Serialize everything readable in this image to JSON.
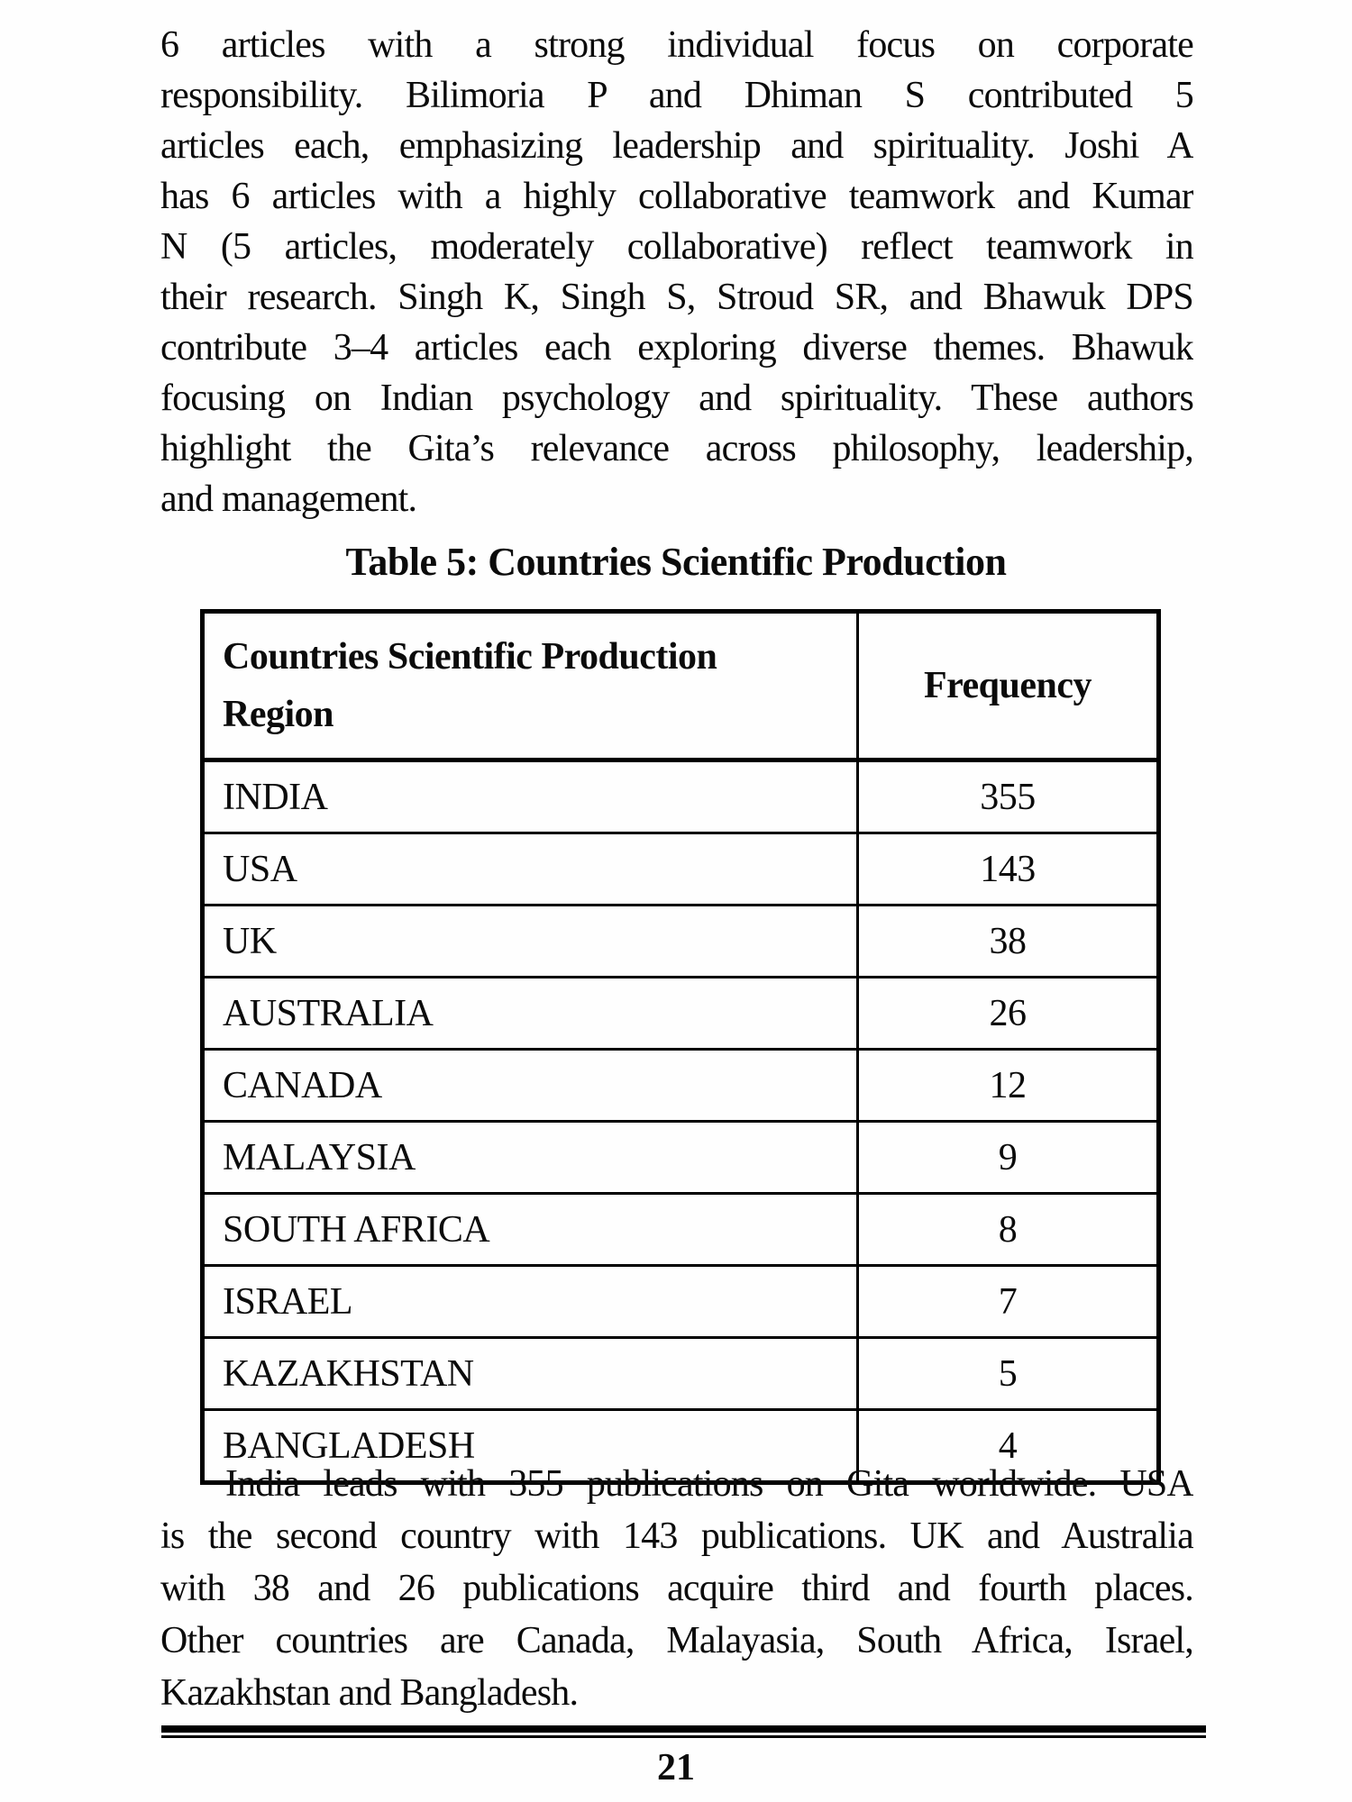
{
  "paragraph1": {
    "lines": [
      "6 articles with a strong individual focus on corporate",
      "responsibility. Bilimoria P and Dhiman S contributed 5",
      "articles each, emphasizing leadership and spirituality. Joshi A",
      "has 6 articles with a highly collaborative teamwork and Kumar",
      "N (5 articles, moderately collaborative) reflect teamwork in",
      "their research. Singh K, Singh S, Stroud SR, and Bhawuk DPS",
      "contribute 3–4 articles each exploring diverse themes. Bhawuk",
      "focusing on Indian psychology and spirituality. These authors",
      "highlight the Gita’s relevance across philosophy, leadership,",
      "and management."
    ]
  },
  "table": {
    "title": "Table 5: Countries Scientific Production",
    "header": {
      "col1_line1": "Countries Scientific Production",
      "col1_line2": "Region",
      "col2": "Frequency"
    },
    "rows": [
      {
        "region": "INDIA",
        "frequency": "355"
      },
      {
        "region": "USA",
        "frequency": "143"
      },
      {
        "region": "UK",
        "frequency": "38"
      },
      {
        "region": "AUSTRALIA",
        "frequency": "26"
      },
      {
        "region": "CANADA",
        "frequency": "12"
      },
      {
        "region": "MALAYSIA",
        "frequency": "9"
      },
      {
        "region": "SOUTH AFRICA",
        "frequency": "8"
      },
      {
        "region": "ISRAEL",
        "frequency": "7"
      },
      {
        "region": "KAZAKHSTAN",
        "frequency": "5"
      },
      {
        "region": "BANGLADESH",
        "frequency": "4"
      }
    ]
  },
  "paragraph2": {
    "lines": [
      "India leads with 355 publications on Gita worldwide. USA",
      "is the second country with 143 publications. UK and Australia",
      "with 38 and 26 publications acquire third and fourth places.",
      "Other countries are Canada, Malayasia, South Africa, Israel,",
      "Kazakhstan and Bangladesh."
    ]
  },
  "footer": {
    "page_number": "21"
  }
}
